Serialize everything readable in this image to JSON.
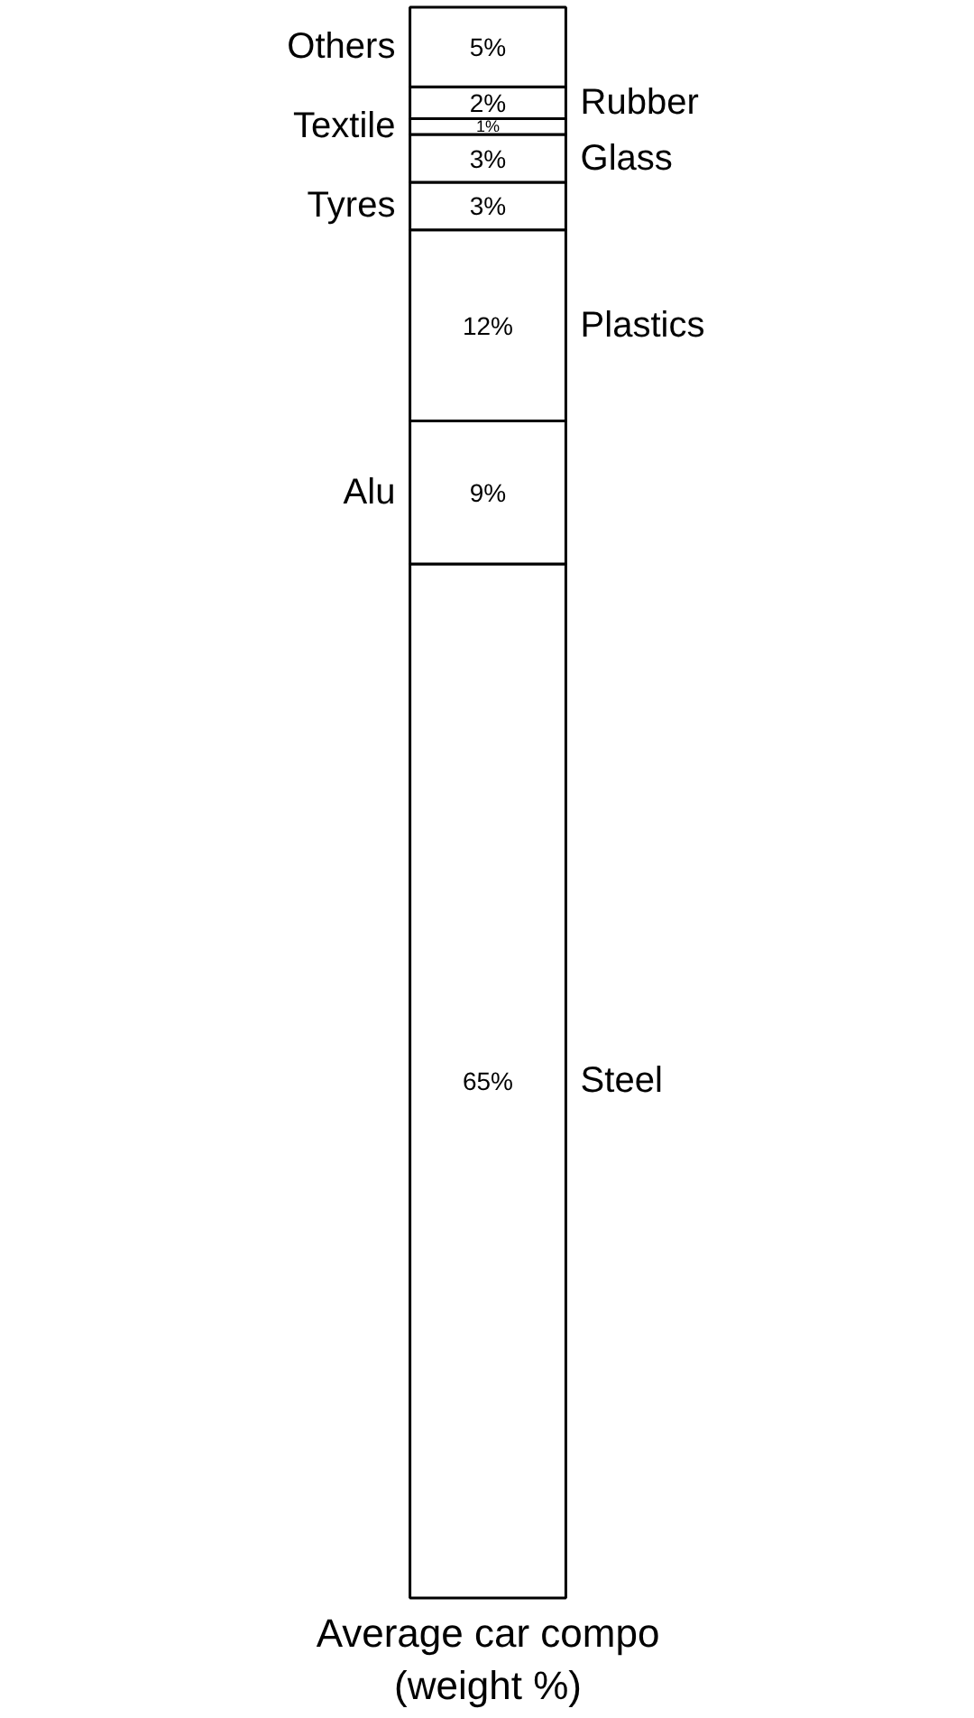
{
  "chart_data": {
    "type": "bar",
    "stacked": true,
    "xlabel": "Average car compo\n(weight %)",
    "categories": [
      null
    ],
    "series": [
      {
        "name": "Steel",
        "color": "#ffffff",
        "values": [
          65
        ],
        "value_labels": [
          "65%"
        ]
      },
      {
        "name": "Alu",
        "color": "#ffffff",
        "values": [
          9
        ],
        "value_labels": [
          "9%"
        ]
      },
      {
        "name": "Plastics",
        "color": "#ffffff",
        "values": [
          12
        ],
        "value_labels": [
          "12%"
        ]
      },
      {
        "name": "Tyres",
        "color": "#ffffff",
        "values": [
          3
        ],
        "value_labels": [
          "3%"
        ]
      },
      {
        "name": "Glass",
        "color": "#ffffff",
        "values": [
          3
        ],
        "value_labels": [
          "3%"
        ]
      },
      {
        "name": "Textile",
        "color": "#ffffff",
        "values": [
          1
        ],
        "value_labels": [
          "1%"
        ]
      },
      {
        "name": "Rubber",
        "color": "#ffffff",
        "values": [
          2
        ],
        "value_labels": [
          "2%"
        ]
      },
      {
        "name": "Others",
        "color": "#ffffff",
        "values": [
          5
        ],
        "value_labels": [
          "5%"
        ]
      }
    ]
  }
}
